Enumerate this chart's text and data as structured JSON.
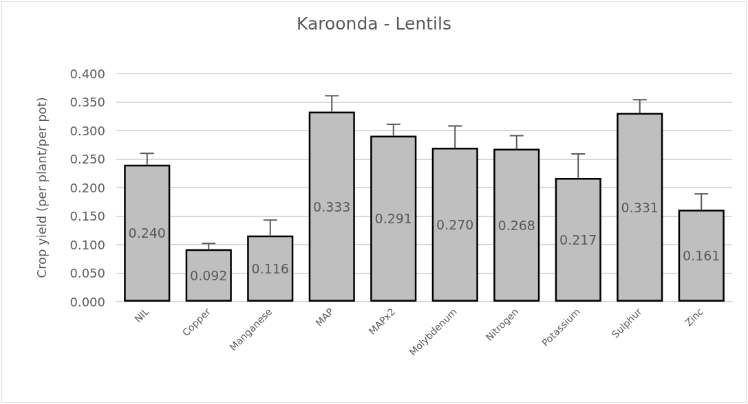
{
  "chart_data": {
    "type": "bar",
    "title": "Karoonda - Lentils",
    "ylabel": "Crop yield (per plant/per pot)",
    "categories": [
      "NIL",
      "Copper",
      "Manganese",
      "MAP",
      "MAPx2",
      "Molybdenum",
      "Nitrogen",
      "Potassium",
      "Sulphur",
      "Zinc"
    ],
    "values": [
      0.24,
      0.092,
      0.116,
      0.333,
      0.291,
      0.27,
      0.268,
      0.217,
      0.331,
      0.161
    ],
    "value_labels": [
      "0.240",
      "0.092",
      "0.116",
      "0.333",
      "0.291",
      "0.270",
      "0.268",
      "0.217",
      "0.331",
      "0.161"
    ],
    "errors": [
      [
        0.24,
        0.26
      ],
      [
        0.092,
        0.102
      ],
      [
        0.116,
        0.143
      ],
      [
        0.333,
        0.361
      ],
      [
        0.291,
        0.311
      ],
      [
        0.27,
        0.308
      ],
      [
        0.268,
        0.291
      ],
      [
        0.217,
        0.259
      ],
      [
        0.331,
        0.354
      ],
      [
        0.161,
        0.189
      ]
    ],
    "color": "#bfbfbf",
    "ylim": [
      0,
      0.4
    ],
    "yticks": [
      {
        "value": 0,
        "label": "0.000"
      },
      {
        "value": 0.05,
        "label": "0.050"
      },
      {
        "value": 0.1,
        "label": "0.100"
      },
      {
        "value": 0.15,
        "label": "0.150"
      },
      {
        "value": 0.2,
        "label": "0.200"
      },
      {
        "value": 0.25,
        "label": "0.250"
      },
      {
        "value": 0.3,
        "label": "0.300"
      },
      {
        "value": 0.35,
        "label": "0.350"
      },
      {
        "value": 0.4,
        "label": "0.400"
      }
    ],
    "grid": "y"
  }
}
